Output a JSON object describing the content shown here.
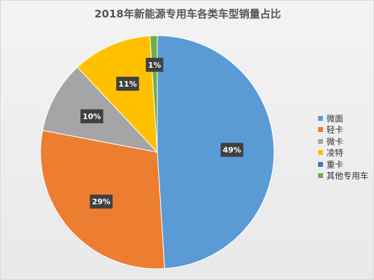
{
  "chart_data": {
    "type": "pie",
    "title": "2018年新能源专用车各类车型销量占比",
    "categories": [
      "微面",
      "轻卡",
      "微卡",
      "凌特",
      "重卡",
      "其他专用车"
    ],
    "values": [
      49,
      29,
      10,
      11,
      0,
      1
    ],
    "data_labels": [
      "49%",
      "29%",
      "10%",
      "11%",
      "",
      "1%"
    ],
    "colors": [
      "#5b9bd5",
      "#ed7d31",
      "#a5a5a5",
      "#ffc000",
      "#4472c4",
      "#70ad47"
    ],
    "legend_position": "right"
  }
}
